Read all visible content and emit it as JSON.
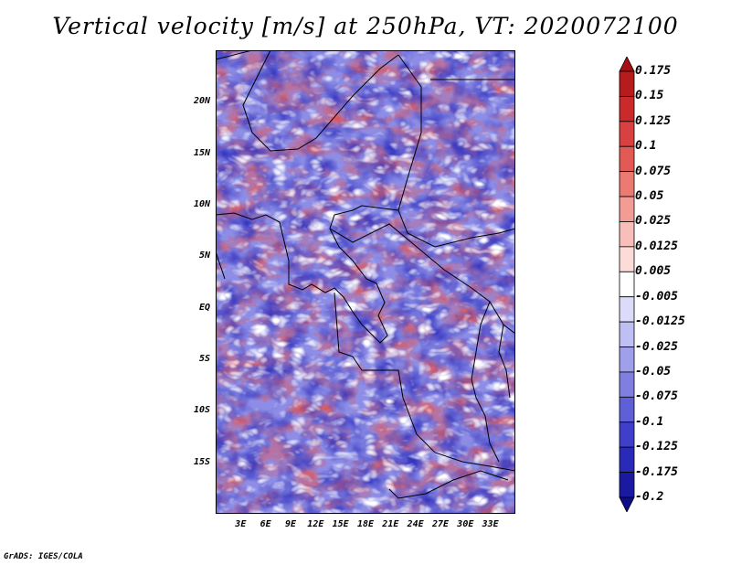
{
  "title": "Vertical velocity [m/s] at 250hPa, VT: 2020072100",
  "credit": "GrADS: IGES/COLA",
  "map": {
    "lat_range": [
      -20,
      25
    ],
    "lon_range": [
      0,
      36
    ],
    "lat_ticks": [
      {
        "value": 20,
        "label": "20N"
      },
      {
        "value": 15,
        "label": "15N"
      },
      {
        "value": 10,
        "label": "10N"
      },
      {
        "value": 5,
        "label": "5N"
      },
      {
        "value": 0,
        "label": "EQ"
      },
      {
        "value": -5,
        "label": "5S"
      },
      {
        "value": -10,
        "label": "10S"
      },
      {
        "value": -15,
        "label": "15S"
      }
    ],
    "lon_ticks": [
      {
        "value": 3,
        "label": "3E"
      },
      {
        "value": 6,
        "label": "6E"
      },
      {
        "value": 9,
        "label": "9E"
      },
      {
        "value": 12,
        "label": "12E"
      },
      {
        "value": 15,
        "label": "15E"
      },
      {
        "value": 18,
        "label": "18E"
      },
      {
        "value": 21,
        "label": "21E"
      },
      {
        "value": 24,
        "label": "24E"
      },
      {
        "value": 27,
        "label": "27E"
      },
      {
        "value": 30,
        "label": "30E"
      },
      {
        "value": 33,
        "label": "33E"
      }
    ]
  },
  "colorbar": {
    "levels": [
      "0.175",
      "0.15",
      "0.125",
      "0.1",
      "0.075",
      "0.05",
      "0.025",
      "0.0125",
      "0.005",
      "-0.005",
      "-0.0125",
      "-0.025",
      "-0.05",
      "-0.075",
      "-0.1",
      "-0.125",
      "-0.175",
      "-0.2"
    ],
    "colors": [
      "#a50f15",
      "#b71c1c",
      "#cb2a2a",
      "#d94040",
      "#e35a55",
      "#ec7a73",
      "#f39c96",
      "#f8bfba",
      "#fcdcd9",
      "#ffffff",
      "#dcdcfa",
      "#bfbff4",
      "#9f9fec",
      "#7f7fe2",
      "#5f5fd8",
      "#3f3fcc",
      "#2a2ab8",
      "#1a1aa0",
      "#0c0c8c"
    ]
  }
}
